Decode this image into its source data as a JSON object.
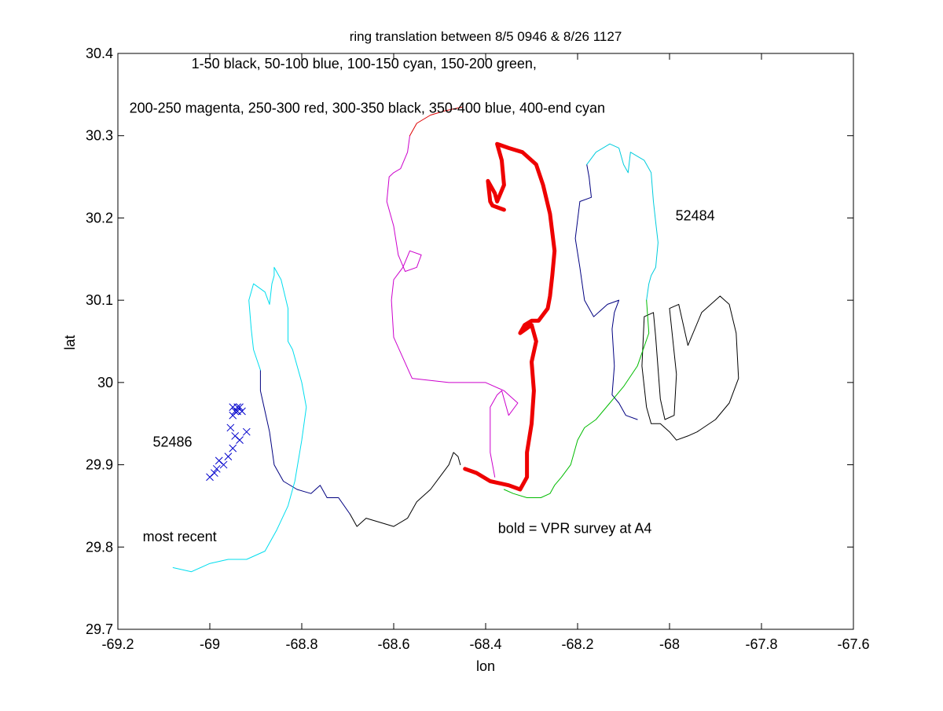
{
  "chart_data": {
    "type": "line",
    "title": "ring translation between 8/5 0946 & 8/26 1127",
    "xlabel": "lon",
    "ylabel": "lat",
    "xlim": [
      -69.2,
      -67.6
    ],
    "ylim": [
      29.7,
      30.4
    ],
    "xticks": [
      -69.2,
      -69,
      -68.8,
      -68.6,
      -68.4,
      -68.2,
      -68,
      -67.8,
      -67.6
    ],
    "yticks": [
      29.7,
      29.8,
      29.9,
      30,
      30.1,
      30.2,
      30.3,
      30.4
    ],
    "xtick_labels": [
      "-69.2",
      "-69",
      "-68.8",
      "-68.6",
      "-68.4",
      "-68.2",
      "-68",
      "-67.8",
      "-67.6"
    ],
    "ytick_labels": [
      "29.7",
      "29.8",
      "29.9",
      "30",
      "30.1",
      "30.2",
      "30.3",
      "30.4"
    ],
    "grid": false,
    "annotations": [
      {
        "text": "1-50 black, 50-100 blue, 100-150 cyan, 150-200 green,",
        "x": -69.04,
        "y": 30.382,
        "anchor": "start"
      },
      {
        "text": "200-250 magenta, 250-300 red, 300-350 black, 350-400 blue, 400-end cyan",
        "x": -69.175,
        "y": 30.328,
        "anchor": "start"
      },
      {
        "text": "52484",
        "x": -67.987,
        "y": 30.197,
        "anchor": "start"
      },
      {
        "text": "52486",
        "x": -69.124,
        "y": 29.922,
        "anchor": "start"
      },
      {
        "text": "most recent",
        "x": -69.146,
        "y": 29.807,
        "anchor": "start"
      },
      {
        "text": "bold = VPR survey at A4",
        "x": -68.373,
        "y": 29.817,
        "anchor": "start"
      }
    ],
    "series": [
      {
        "color": "#000000",
        "width": 1,
        "points": [
          [
            -67.85,
            30.005
          ],
          [
            -67.855,
            30.06
          ],
          [
            -67.87,
            30.095
          ],
          [
            -67.89,
            30.105
          ],
          [
            -67.93,
            30.085
          ],
          [
            -67.96,
            30.045
          ],
          [
            -67.98,
            30.095
          ],
          [
            -68.0,
            30.09
          ],
          [
            -67.985,
            30.01
          ],
          [
            -67.99,
            29.96
          ],
          [
            -68.01,
            29.955
          ],
          [
            -68.02,
            29.98
          ],
          [
            -68.03,
            30.055
          ],
          [
            -68.035,
            30.085
          ],
          [
            -68.055,
            30.08
          ],
          [
            -68.06,
            30.02
          ],
          [
            -68.05,
            29.97
          ],
          [
            -68.04,
            29.95
          ],
          [
            -68.02,
            29.95
          ],
          [
            -68.0,
            29.94
          ],
          [
            -67.985,
            29.93
          ],
          [
            -67.96,
            29.935
          ],
          [
            -67.94,
            29.94
          ],
          [
            -67.9,
            29.955
          ],
          [
            -67.87,
            29.975
          ],
          [
            -67.85,
            30.005
          ]
        ]
      },
      {
        "color": "#000080",
        "width": 1,
        "points": [
          [
            -68.07,
            29.955
          ],
          [
            -68.095,
            29.96
          ],
          [
            -68.11,
            29.975
          ],
          [
            -68.125,
            29.985
          ],
          [
            -68.12,
            30.02
          ],
          [
            -68.125,
            30.065
          ],
          [
            -68.12,
            30.085
          ],
          [
            -68.11,
            30.1
          ],
          [
            -68.135,
            30.095
          ],
          [
            -68.165,
            30.08
          ],
          [
            -68.185,
            30.1
          ],
          [
            -68.195,
            30.14
          ],
          [
            -68.205,
            30.175
          ],
          [
            -68.195,
            30.22
          ],
          [
            -68.17,
            30.225
          ],
          [
            -68.175,
            30.25
          ],
          [
            -68.18,
            30.265
          ]
        ]
      },
      {
        "color": "#00CCDD",
        "width": 1,
        "points": [
          [
            -68.18,
            30.265
          ],
          [
            -68.16,
            30.28
          ],
          [
            -68.13,
            30.29
          ],
          [
            -68.11,
            30.285
          ],
          [
            -68.1,
            30.265
          ],
          [
            -68.09,
            30.255
          ],
          [
            -68.085,
            30.28
          ],
          [
            -68.07,
            30.275
          ],
          [
            -68.055,
            30.27
          ],
          [
            -68.04,
            30.255
          ],
          [
            -68.035,
            30.22
          ],
          [
            -68.03,
            30.195
          ],
          [
            -68.025,
            30.17
          ],
          [
            -68.03,
            30.14
          ],
          [
            -68.04,
            30.13
          ],
          [
            -68.045,
            30.12
          ],
          [
            -68.05,
            30.1
          ]
        ]
      },
      {
        "color": "#00BB00",
        "width": 1,
        "points": [
          [
            -68.05,
            30.1
          ],
          [
            -68.045,
            30.06
          ],
          [
            -68.07,
            30.02
          ],
          [
            -68.1,
            29.995
          ],
          [
            -68.13,
            29.975
          ],
          [
            -68.16,
            29.955
          ],
          [
            -68.185,
            29.945
          ],
          [
            -68.2,
            29.93
          ],
          [
            -68.215,
            29.9
          ],
          [
            -68.235,
            29.885
          ],
          [
            -68.25,
            29.875
          ],
          [
            -68.26,
            29.865
          ],
          [
            -68.28,
            29.86
          ],
          [
            -68.31,
            29.86
          ],
          [
            -68.34,
            29.865
          ],
          [
            -68.36,
            29.87
          ]
        ]
      },
      {
        "color": "#CC00CC",
        "width": 1,
        "points": [
          [
            -68.38,
            29.885
          ],
          [
            -68.39,
            29.915
          ],
          [
            -68.39,
            29.97
          ],
          [
            -68.375,
            29.985
          ],
          [
            -68.365,
            29.99
          ],
          [
            -68.35,
            29.96
          ],
          [
            -68.33,
            29.975
          ],
          [
            -68.35,
            29.985
          ],
          [
            -68.36,
            29.99
          ],
          [
            -68.4,
            30.0
          ],
          [
            -68.48,
            30.0
          ],
          [
            -68.56,
            30.005
          ],
          [
            -68.6,
            30.055
          ],
          [
            -68.605,
            30.1
          ],
          [
            -68.6,
            30.125
          ],
          [
            -68.58,
            30.14
          ],
          [
            -68.565,
            30.16
          ],
          [
            -68.54,
            30.155
          ],
          [
            -68.55,
            30.14
          ],
          [
            -68.575,
            30.135
          ],
          [
            -68.59,
            30.155
          ],
          [
            -68.6,
            30.19
          ],
          [
            -68.615,
            30.22
          ],
          [
            -68.61,
            30.25
          ],
          [
            -68.6,
            30.255
          ],
          [
            -68.585,
            30.26
          ],
          [
            -68.57,
            30.28
          ],
          [
            -68.565,
            30.3
          ]
        ]
      },
      {
        "color": "#DD0000",
        "width": 1,
        "points": [
          [
            -68.565,
            30.3
          ],
          [
            -68.55,
            30.315
          ],
          [
            -68.52,
            30.325
          ],
          [
            -68.49,
            30.33
          ],
          [
            -68.45,
            30.335
          ]
        ]
      },
      {
        "color": "#000000",
        "width": 1,
        "points": [
          [
            -68.455,
            29.9
          ],
          [
            -68.46,
            29.91
          ],
          [
            -68.47,
            29.915
          ],
          [
            -68.48,
            29.9
          ],
          [
            -68.5,
            29.885
          ],
          [
            -68.52,
            29.87
          ],
          [
            -68.55,
            29.855
          ],
          [
            -68.57,
            29.835
          ],
          [
            -68.6,
            29.825
          ],
          [
            -68.63,
            29.83
          ],
          [
            -68.66,
            29.835
          ],
          [
            -68.68,
            29.825
          ],
          [
            -68.695,
            29.84
          ]
        ]
      },
      {
        "color": "#000080",
        "width": 1,
        "points": [
          [
            -68.695,
            29.84
          ],
          [
            -68.72,
            29.86
          ],
          [
            -68.745,
            29.86
          ],
          [
            -68.76,
            29.875
          ],
          [
            -68.78,
            29.865
          ],
          [
            -68.81,
            29.87
          ],
          [
            -68.84,
            29.88
          ],
          [
            -68.86,
            29.9
          ],
          [
            -68.87,
            29.94
          ],
          [
            -68.88,
            29.965
          ],
          [
            -68.89,
            29.99
          ],
          [
            -68.89,
            30.015
          ]
        ]
      },
      {
        "color": "#00DDEE",
        "width": 1,
        "points": [
          [
            -68.89,
            30.015
          ],
          [
            -68.905,
            30.04
          ],
          [
            -68.91,
            30.065
          ],
          [
            -68.915,
            30.1
          ],
          [
            -68.905,
            30.12
          ],
          [
            -68.88,
            30.11
          ],
          [
            -68.87,
            30.095
          ],
          [
            -68.865,
            30.12
          ],
          [
            -68.86,
            30.13
          ],
          [
            -68.86,
            30.14
          ],
          [
            -68.845,
            30.125
          ],
          [
            -68.83,
            30.09
          ],
          [
            -68.83,
            30.05
          ],
          [
            -68.82,
            30.04
          ],
          [
            -68.8,
            30.0
          ],
          [
            -68.79,
            29.97
          ],
          [
            -68.8,
            29.93
          ],
          [
            -68.815,
            29.88
          ],
          [
            -68.83,
            29.85
          ],
          [
            -68.855,
            29.82
          ],
          [
            -68.88,
            29.795
          ],
          [
            -68.92,
            29.785
          ],
          [
            -68.96,
            29.785
          ],
          [
            -69.0,
            29.78
          ],
          [
            -69.04,
            29.77
          ],
          [
            -69.08,
            29.775
          ]
        ]
      },
      {
        "color": "#EE0000",
        "width": 5,
        "points": [
          [
            -68.36,
            30.21
          ],
          [
            -68.385,
            30.215
          ],
          [
            -68.39,
            30.22
          ],
          [
            -68.395,
            30.245
          ],
          [
            -68.38,
            30.23
          ],
          [
            -68.375,
            30.22
          ],
          [
            -68.36,
            30.24
          ],
          [
            -68.365,
            30.27
          ],
          [
            -68.375,
            30.29
          ],
          [
            -68.35,
            30.285
          ],
          [
            -68.32,
            30.28
          ],
          [
            -68.29,
            30.265
          ],
          [
            -68.275,
            30.24
          ],
          [
            -68.26,
            30.205
          ],
          [
            -68.25,
            30.16
          ],
          [
            -68.255,
            30.13
          ],
          [
            -68.26,
            30.105
          ],
          [
            -68.265,
            30.09
          ],
          [
            -68.285,
            30.075
          ],
          [
            -68.3,
            30.075
          ],
          [
            -68.315,
            30.07
          ],
          [
            -68.325,
            30.06
          ],
          [
            -68.3,
            30.07
          ],
          [
            -68.29,
            30.05
          ],
          [
            -68.3,
            30.025
          ],
          [
            -68.295,
            29.99
          ],
          [
            -68.3,
            29.95
          ],
          [
            -68.31,
            29.915
          ],
          [
            -68.31,
            29.885
          ],
          [
            -68.325,
            29.87
          ],
          [
            -68.35,
            29.875
          ],
          [
            -68.39,
            29.88
          ],
          [
            -68.42,
            29.89
          ],
          [
            -68.445,
            29.895
          ]
        ]
      }
    ],
    "markers": {
      "symbol": "x",
      "color": "#0000CC",
      "points": [
        [
          -69.0,
          29.885
        ],
        [
          -68.99,
          29.89
        ],
        [
          -68.985,
          29.895
        ],
        [
          -68.98,
          29.905
        ],
        [
          -68.97,
          29.9
        ],
        [
          -68.96,
          29.91
        ],
        [
          -68.95,
          29.92
        ],
        [
          -68.945,
          29.935
        ],
        [
          -68.935,
          29.93
        ],
        [
          -68.92,
          29.94
        ],
        [
          -68.93,
          29.965
        ],
        [
          -68.935,
          29.97
        ],
        [
          -68.94,
          29.965
        ],
        [
          -68.945,
          29.965
        ],
        [
          -68.95,
          29.96
        ],
        [
          -68.955,
          29.945
        ],
        [
          -68.95,
          29.97
        ],
        [
          -68.94,
          29.97
        ]
      ]
    }
  }
}
